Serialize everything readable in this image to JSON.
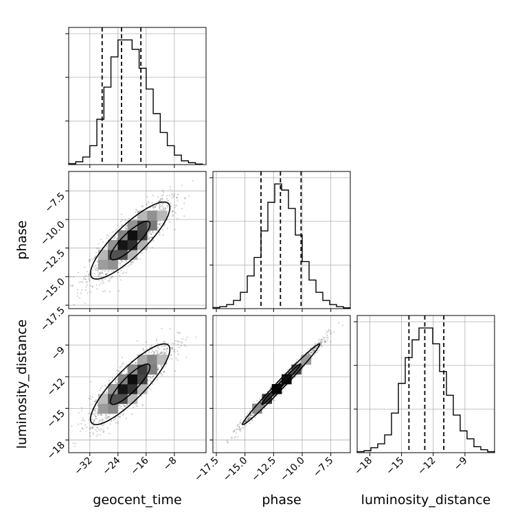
{
  "chart_data": {
    "type": "corner",
    "parameters": [
      "geocent_time",
      "phase",
      "luminosity_distance"
    ],
    "axis_labels": {
      "geocent_time": "geocent_time",
      "phase": "phase",
      "luminosity_distance": "luminosity_distance"
    },
    "ranges": {
      "geocent_time": [
        -38,
        1
      ],
      "phase": [
        -17.8,
        -5.8
      ],
      "luminosity_distance": [
        -19.2,
        -6.2
      ]
    },
    "ticks": {
      "geocent_time": [
        -32,
        -24,
        -16,
        -8
      ],
      "phase": [
        -17.5,
        -15.0,
        -12.5,
        -10.0,
        -7.5
      ],
      "luminosity_distance": [
        -18,
        -15,
        -12,
        -9
      ]
    },
    "tick_labels": {
      "geocent_time": [
        "−32",
        "−24",
        "−16",
        "−8"
      ],
      "phase": [
        "−17.5",
        "−15.0",
        "−12.5",
        "−10.0",
        "−7.5"
      ],
      "luminosity_distance": [
        "−18",
        "−15",
        "−12",
        "−9"
      ]
    },
    "quantiles": {
      "geocent_time": [
        -28.5,
        -23.0,
        -17.5
      ],
      "phase": [
        -13.6,
        -11.9,
        -10.1
      ],
      "luminosity_distance": [
        -14.3,
        -12.8,
        -11.0
      ]
    },
    "histograms": {
      "geocent_time": {
        "edges": [
          -38,
          -36,
          -34,
          -32,
          -30,
          -28,
          -26,
          -24,
          -22,
          -20,
          -18,
          -16,
          -14,
          -12,
          -10,
          -8,
          -6,
          -4,
          -2,
          0
        ],
        "counts": [
          0.5,
          1.5,
          4,
          10,
          24,
          41,
          57,
          66,
          66,
          61,
          51,
          40,
          27,
          17,
          10,
          5,
          2,
          1,
          0.3
        ]
      },
      "phase": {
        "edges": [
          -17.8,
          -17.2,
          -16.6,
          -16.0,
          -15.4,
          -14.8,
          -14.2,
          -13.6,
          -13.0,
          -12.4,
          -11.8,
          -11.2,
          -10.6,
          -10.0,
          -9.4,
          -8.8,
          -8.2,
          -7.6,
          -7.0,
          -6.4,
          -5.8
        ],
        "counts": [
          0.5,
          1,
          2,
          4,
          8,
          16,
          25,
          38,
          52,
          61,
          58,
          49,
          36,
          23,
          14,
          8,
          4,
          2,
          1,
          0.4
        ]
      },
      "luminosity_distance": {
        "edges": [
          -19.2,
          -18.55,
          -17.9,
          -17.25,
          -16.6,
          -15.95,
          -15.3,
          -14.65,
          -14.0,
          -13.35,
          -12.7,
          -12.05,
          -11.4,
          -10.75,
          -10.1,
          -9.45,
          -8.8,
          -8.15,
          -7.5,
          -6.85,
          -6.2
        ],
        "counts": [
          0.5,
          1,
          2.5,
          4.5,
          9,
          20,
          35,
          48,
          57,
          63,
          63,
          55,
          41,
          29,
          19,
          11,
          7,
          3,
          1.5,
          0.5
        ]
      }
    },
    "correlations": {
      "phase_vs_geocent_time": 0.85,
      "luminosity_distance_vs_geocent_time": 0.86,
      "luminosity_distance_vs_phase": 0.99
    },
    "grid": true
  }
}
